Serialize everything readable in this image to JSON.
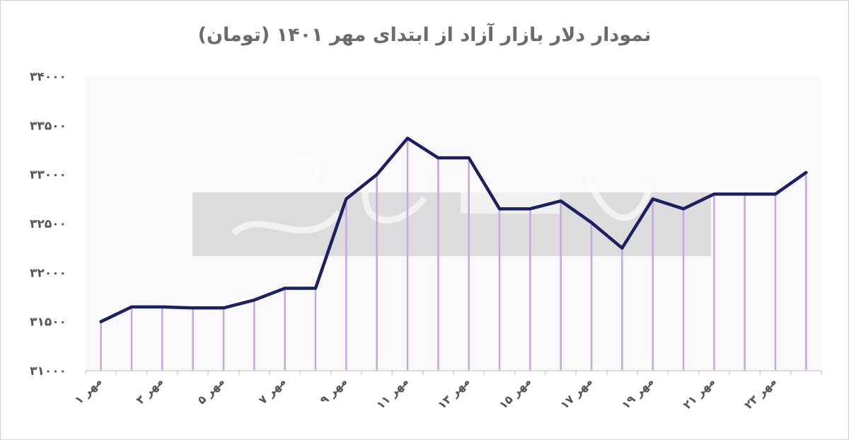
{
  "chart_data": {
    "type": "line",
    "title": "نمودار دلار بازار آزاد از ابتدای مهر ۱۴۰۱ (تومان)",
    "xlabel": "",
    "ylabel": "",
    "ylim": [
      31000,
      34000
    ],
    "yticks": [
      31000,
      31500,
      32000,
      32500,
      33000,
      33500,
      34000
    ],
    "ytick_labels": [
      "۳۱۰۰۰",
      "۳۱۵۰۰",
      "۳۲۰۰۰",
      "۳۲۵۰۰",
      "۳۳۰۰۰",
      "۳۳۵۰۰",
      "۳۴۰۰۰"
    ],
    "categories": [
      "۱ مهر",
      "",
      "۳ مهر",
      "",
      "۵ مهر",
      "",
      "۷ مهر",
      "",
      "۹ مهر",
      "",
      "۱۱ مهر",
      "",
      "۱۳ مهر",
      "",
      "۱۵ مهر",
      "",
      "۱۷ مهر",
      "",
      "۱۹ مهر",
      "",
      "۲۱ مهر",
      "",
      "۲۳ مهر",
      ""
    ],
    "values": [
      31500,
      31650,
      31650,
      31640,
      31640,
      31720,
      31840,
      31840,
      32750,
      33000,
      33370,
      33170,
      33170,
      32650,
      32650,
      32730,
      32510,
      32250,
      32750,
      32650,
      32800,
      32800,
      32800,
      33020
    ],
    "grid": false,
    "legend": "none",
    "colors": {
      "line": "#1e1f5e",
      "drop": "#c4a8de",
      "plot_bg": "#f9f9fb",
      "axis": "#d0d0d0"
    }
  }
}
